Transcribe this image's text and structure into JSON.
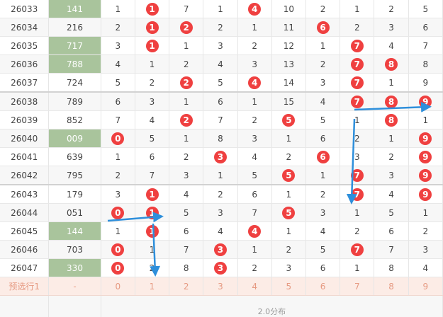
{
  "rows": [
    {
      "issue": "26033",
      "sum": "141",
      "sumHighlight": true,
      "digits": [
        "1",
        "1",
        "7",
        "1",
        "4",
        "10",
        "2",
        "1",
        "2",
        "5"
      ],
      "balls": [
        1,
        4
      ]
    },
    {
      "issue": "26034",
      "sum": "216",
      "sumHighlight": false,
      "digits": [
        "2",
        "1",
        "2",
        "2",
        "1",
        "11",
        "6",
        "2",
        "3",
        "6"
      ],
      "balls": [
        1,
        2,
        6
      ]
    },
    {
      "issue": "26035",
      "sum": "717",
      "sumHighlight": true,
      "digits": [
        "3",
        "1",
        "1",
        "3",
        "2",
        "12",
        "1",
        "7",
        "4",
        "7"
      ],
      "balls": [
        1,
        7
      ]
    },
    {
      "issue": "26036",
      "sum": "788",
      "sumHighlight": true,
      "digits": [
        "4",
        "1",
        "2",
        "4",
        "3",
        "13",
        "2",
        "7",
        "8",
        "8"
      ],
      "balls": [
        7,
        8
      ]
    },
    {
      "issue": "26037",
      "sum": "724",
      "sumHighlight": false,
      "digits": [
        "5",
        "2",
        "2",
        "5",
        "4",
        "14",
        "3",
        "7",
        "1",
        "9"
      ],
      "balls": [
        2,
        4,
        7
      ]
    },
    {
      "issue": "26038",
      "sum": "789",
      "sumHighlight": false,
      "digits": [
        "6",
        "3",
        "1",
        "6",
        "1",
        "15",
        "4",
        "7",
        "8",
        "9"
      ],
      "balls": [
        7,
        8,
        9
      ]
    },
    {
      "issue": "26039",
      "sum": "852",
      "sumHighlight": false,
      "digits": [
        "7",
        "4",
        "2",
        "7",
        "2",
        "5",
        "5",
        "1",
        "8",
        "1"
      ],
      "balls": [
        2,
        5,
        8
      ]
    },
    {
      "issue": "26040",
      "sum": "009",
      "sumHighlight": true,
      "digits": [
        "0",
        "5",
        "1",
        "8",
        "3",
        "1",
        "6",
        "2",
        "1",
        "9"
      ],
      "balls": [
        0,
        9
      ]
    },
    {
      "issue": "26041",
      "sum": "639",
      "sumHighlight": false,
      "digits": [
        "1",
        "6",
        "2",
        "3",
        "4",
        "2",
        "6",
        "3",
        "2",
        "9"
      ],
      "balls": [
        3,
        6,
        9
      ]
    },
    {
      "issue": "26042",
      "sum": "795",
      "sumHighlight": false,
      "digits": [
        "2",
        "7",
        "3",
        "1",
        "5",
        "5",
        "1",
        "7",
        "3",
        "9"
      ],
      "balls": [
        5,
        7,
        9
      ]
    },
    {
      "issue": "26043",
      "sum": "179",
      "sumHighlight": false,
      "digits": [
        "3",
        "1",
        "4",
        "2",
        "6",
        "1",
        "2",
        "7",
        "4",
        "9"
      ],
      "balls": [
        1,
        7,
        9
      ]
    },
    {
      "issue": "26044",
      "sum": "051",
      "sumHighlight": false,
      "digits": [
        "0",
        "1",
        "5",
        "3",
        "7",
        "5",
        "3",
        "1",
        "5",
        "1"
      ],
      "balls": [
        0,
        1,
        5
      ]
    },
    {
      "issue": "26045",
      "sum": "144",
      "sumHighlight": true,
      "digits": [
        "1",
        "1",
        "6",
        "4",
        "4",
        "1",
        "4",
        "2",
        "6",
        "2"
      ],
      "balls": [
        1,
        4
      ]
    },
    {
      "issue": "26046",
      "sum": "703",
      "sumHighlight": false,
      "digits": [
        "0",
        "1",
        "7",
        "3",
        "1",
        "2",
        "5",
        "7",
        "7",
        "3"
      ],
      "balls": [
        0,
        3,
        7
      ]
    },
    {
      "issue": "26047",
      "sum": "330",
      "sumHighlight": true,
      "digits": [
        "0",
        "2",
        "8",
        "3",
        "2",
        "3",
        "6",
        "1",
        "8",
        "4"
      ],
      "balls": [
        0,
        3
      ]
    }
  ],
  "preselect": {
    "label": "预选行1",
    "sum": "-",
    "digits": [
      "0",
      "1",
      "2",
      "3",
      "4",
      "5",
      "6",
      "7",
      "8",
      "9"
    ]
  },
  "footer": {
    "text": "2.0分布"
  },
  "colors": {
    "ball": "#ef4040",
    "sumHighlight": "#a9c49c",
    "arrow": "#2e8fdb",
    "preselectText": "#e69a82"
  }
}
